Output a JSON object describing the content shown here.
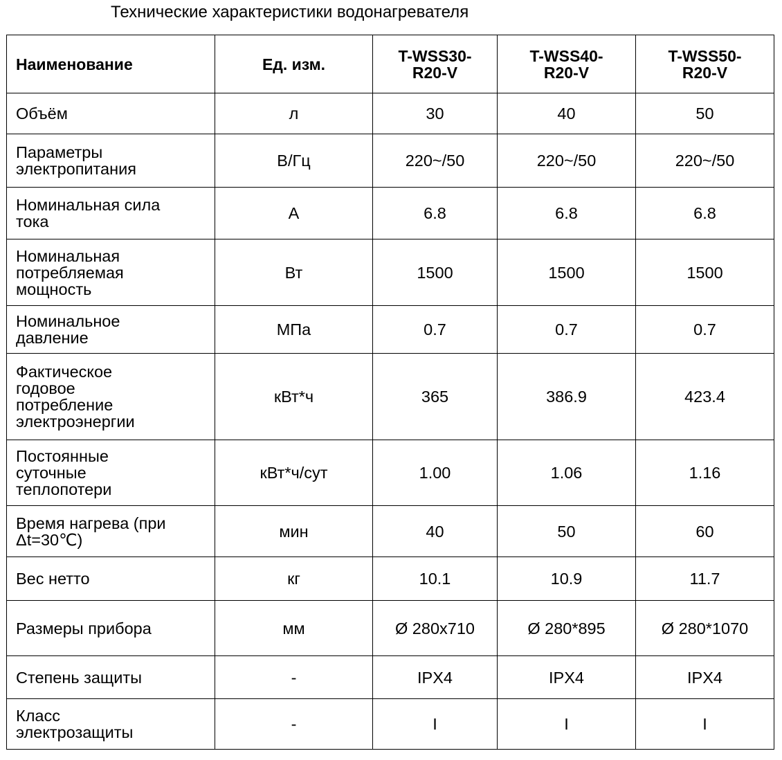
{
  "title": "Технические характеристики водонагревателя",
  "table": {
    "header": [
      "Наименование",
      "Ед. изм.",
      "T-WSS30-\nR20-V",
      "T-WSS40-\nR20-V",
      "T-WSS50-\nR20-V"
    ],
    "rows": [
      [
        "Объём",
        "л",
        "30",
        "40",
        "50"
      ],
      [
        "Параметры\nэлектропитания",
        "В/Гц",
        "220~/50",
        "220~/50",
        "220~/50"
      ],
      [
        "Номинальная сила\nтока",
        "А",
        "6.8",
        "6.8",
        "6.8"
      ],
      [
        "Номинальная\nпотребляемая\nмощность",
        "Вт",
        "1500",
        "1500",
        "1500"
      ],
      [
        "Номинальное\nдавление",
        "МПа",
        "0.7",
        "0.7",
        "0.7"
      ],
      [
        "Фактическое\nгодовое\nпотребление\nэлектроэнергии",
        "кВт*ч",
        "365",
        "386.9",
        "423.4"
      ],
      [
        "Постоянные\nсуточные\nтеплопотери",
        "кВт*ч/сут",
        "1.00",
        "1.06",
        "1.16"
      ],
      [
        "Время нагрева (при\nΔt=30℃)",
        "мин",
        "40",
        "50",
        "60"
      ],
      [
        "Вес нетто",
        "кг",
        "10.1",
        "10.9",
        "11.7"
      ],
      [
        "Размеры прибора",
        "мм",
        "Ø 280x710",
        "Ø 280*895",
        "Ø 280*1070"
      ],
      [
        "Степень защиты",
        "-",
        "IPX4",
        "IPX4",
        "IPX4"
      ],
      [
        "Класс\nэлектрозащиты",
        "-",
        "I",
        "I",
        "I"
      ]
    ]
  }
}
